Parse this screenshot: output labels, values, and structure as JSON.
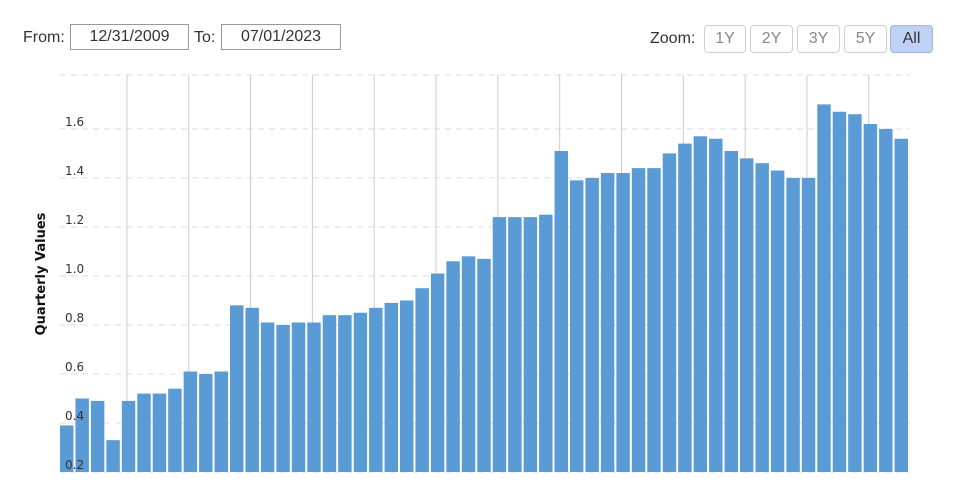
{
  "range": {
    "from_label": "From:",
    "from_value": "12/31/2009",
    "to_label": "To:",
    "to_value": "07/01/2023"
  },
  "zoom": {
    "label": "Zoom:",
    "buttons": [
      "1Y",
      "2Y",
      "3Y",
      "5Y",
      "All"
    ],
    "active": "All"
  },
  "colors": {
    "bar": "#5b9bd5",
    "grid": "#dddddd",
    "year_line": "#cccccc"
  },
  "chart_data": {
    "type": "bar",
    "ylabel": "Quarterly Values",
    "ylim": [
      0.2,
      1.82
    ],
    "yticks": [
      0.2,
      0.4,
      0.6,
      0.8,
      1.0,
      1.2,
      1.4,
      1.6
    ],
    "ytick_labels": [
      "0.2",
      "0.4",
      "0.6",
      "0.8",
      "1.0",
      "1.2",
      "1.4",
      "1.6"
    ],
    "grid": true,
    "values": [
      0.39,
      0.5,
      0.49,
      0.33,
      0.49,
      0.52,
      0.52,
      0.54,
      0.61,
      0.6,
      0.61,
      0.88,
      0.87,
      0.81,
      0.8,
      0.81,
      0.81,
      0.84,
      0.84,
      0.85,
      0.87,
      0.89,
      0.9,
      0.95,
      1.01,
      1.06,
      1.08,
      1.07,
      1.24,
      1.24,
      1.24,
      1.25,
      1.51,
      1.39,
      1.4,
      1.42,
      1.42,
      1.44,
      1.44,
      1.5,
      1.54,
      1.57,
      1.56,
      1.51,
      1.48,
      1.46,
      1.43,
      1.4,
      1.4,
      1.7,
      1.67,
      1.66,
      1.62,
      1.6,
      1.56
    ]
  }
}
